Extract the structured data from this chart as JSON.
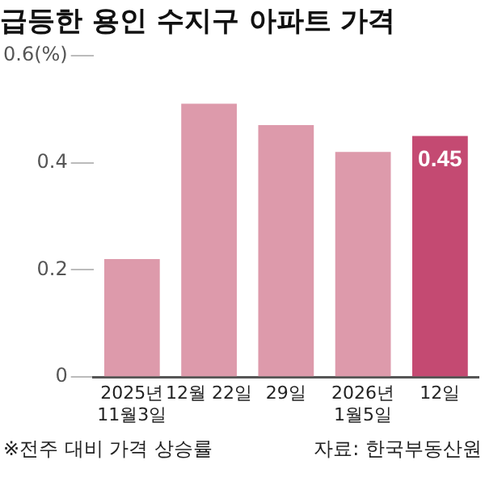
{
  "chart_data": {
    "type": "bar",
    "title": "급등한 용인 수지구 아파트 가격",
    "categories": [
      "2025년\n11월3일",
      "12월 22일",
      "29일",
      "2026년\n1월5일",
      "12일"
    ],
    "values": [
      0.22,
      0.51,
      0.47,
      0.42,
      0.45
    ],
    "colors": [
      "#dd9aab",
      "#dd9aab",
      "#dd9aab",
      "#dd9aab",
      "#c44a72"
    ],
    "value_labels": [
      null,
      null,
      null,
      null,
      "0.45"
    ],
    "ylim": [
      0,
      0.6
    ],
    "yticks": [
      0,
      0.2,
      0.4,
      {
        "value": 0.6,
        "label": "0.6(%)"
      }
    ],
    "grid": false,
    "legend": false,
    "annotations": [
      "※전주 대비 가격 상승률",
      "자료: 한국부동산원"
    ]
  }
}
